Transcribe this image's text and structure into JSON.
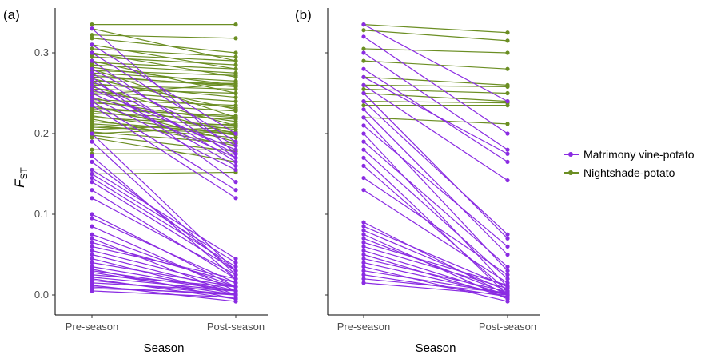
{
  "colors": {
    "Matrimony vine-potato": "#8a2be2",
    "Nightshade-potato": "#6b8e23"
  },
  "ylabel_main": "F",
  "ylabel_sub": "ST",
  "legend": [
    {
      "label": "Matrimony vine-potato",
      "color": "#8a2be2"
    },
    {
      "label": "Nightshade-potato",
      "color": "#6b8e23"
    }
  ],
  "chart_data": [
    {
      "panel": "(a)",
      "type": "line",
      "categories": [
        "Pre-season",
        "Post-season"
      ],
      "xlabel": "Season",
      "ylim": [
        -0.012,
        0.345
      ],
      "yticks": [
        0.0,
        0.1,
        0.2,
        0.3
      ],
      "ytick_labels": [
        "0.0",
        "0.1",
        "0.2",
        "0.3"
      ],
      "series": [
        {
          "name": "Nightshade-potato",
          "pairs": [
            [
              0.335,
              0.335
            ],
            [
              0.33,
              0.29
            ],
            [
              0.322,
              0.318
            ],
            [
              0.318,
              0.3
            ],
            [
              0.31,
              0.28
            ],
            [
              0.305,
              0.295
            ],
            [
              0.3,
              0.27
            ],
            [
              0.298,
              0.29
            ],
            [
              0.295,
              0.285
            ],
            [
              0.29,
              0.25
            ],
            [
              0.288,
              0.28
            ],
            [
              0.285,
              0.275
            ],
            [
              0.282,
              0.26
            ],
            [
              0.28,
              0.22
            ],
            [
              0.278,
              0.272
            ],
            [
              0.275,
              0.265
            ],
            [
              0.272,
              0.258
            ],
            [
              0.27,
              0.26
            ],
            [
              0.268,
              0.23
            ],
            [
              0.265,
              0.262
            ],
            [
              0.262,
              0.245
            ],
            [
              0.26,
              0.255
            ],
            [
              0.258,
              0.21
            ],
            [
              0.255,
              0.25
            ],
            [
              0.252,
              0.24
            ],
            [
              0.25,
              0.232
            ],
            [
              0.248,
              0.262
            ],
            [
              0.245,
              0.2
            ],
            [
              0.242,
              0.235
            ],
            [
              0.24,
              0.215
            ],
            [
              0.238,
              0.228
            ],
            [
              0.235,
              0.19
            ],
            [
              0.232,
              0.22
            ],
            [
              0.23,
              0.222
            ],
            [
              0.228,
              0.205
            ],
            [
              0.225,
              0.218
            ],
            [
              0.222,
              0.198
            ],
            [
              0.22,
              0.21
            ],
            [
              0.218,
              0.185
            ],
            [
              0.215,
              0.2
            ],
            [
              0.212,
              0.202
            ],
            [
              0.21,
              0.195
            ],
            [
              0.208,
              0.2
            ],
            [
              0.205,
              0.212
            ],
            [
              0.202,
              0.188
            ],
            [
              0.2,
              0.208
            ],
            [
              0.198,
              0.178
            ],
            [
              0.195,
              0.165
            ],
            [
              0.18,
              0.18
            ],
            [
              0.175,
              0.175
            ],
            [
              0.155,
              0.155
            ],
            [
              0.15,
              0.152
            ]
          ]
        },
        {
          "name": "Matrimony vine-potato",
          "pairs": [
            [
              0.33,
              0.175
            ],
            [
              0.31,
              0.2
            ],
            [
              0.3,
              0.19
            ],
            [
              0.29,
              0.17
            ],
            [
              0.28,
              0.185
            ],
            [
              0.275,
              0.165
            ],
            [
              0.27,
              0.14
            ],
            [
              0.265,
              0.175
            ],
            [
              0.26,
              0.16
            ],
            [
              0.255,
              0.18
            ],
            [
              0.25,
              0.17
            ],
            [
              0.245,
              0.155
            ],
            [
              0.24,
              0.13
            ],
            [
              0.235,
              0.12
            ],
            [
              0.2,
              0.03
            ],
            [
              0.19,
              0.025
            ],
            [
              0.172,
              0.02
            ],
            [
              0.165,
              0.03
            ],
            [
              0.155,
              0.045
            ],
            [
              0.15,
              0.04
            ],
            [
              0.145,
              0.035
            ],
            [
              0.14,
              0.03
            ],
            [
              0.13,
              0.02
            ],
            [
              0.12,
              0.025
            ],
            [
              0.1,
              0.01
            ],
            [
              0.095,
              0.015
            ],
            [
              0.085,
              0.005
            ],
            [
              0.075,
              0.01
            ],
            [
              0.07,
              0.0
            ],
            [
              0.065,
              0.015
            ],
            [
              0.06,
              0.02
            ],
            [
              0.055,
              0.01
            ],
            [
              0.05,
              0.005
            ],
            [
              0.045,
              0.0
            ],
            [
              0.04,
              0.01
            ],
            [
              0.035,
              0.005
            ],
            [
              0.032,
              -0.005
            ],
            [
              0.03,
              0.005
            ],
            [
              0.028,
              0.0
            ],
            [
              0.025,
              0.01
            ],
            [
              0.022,
              0.005
            ],
            [
              0.02,
              -0.005
            ],
            [
              0.018,
              0.0
            ],
            [
              0.015,
              0.005
            ],
            [
              0.012,
              -0.008
            ],
            [
              0.01,
              0.0
            ],
            [
              0.008,
              0.002
            ],
            [
              0.005,
              -0.003
            ]
          ]
        }
      ]
    },
    {
      "panel": "(b)",
      "type": "line",
      "categories": [
        "Pre-season",
        "Post-season"
      ],
      "xlabel": "Season",
      "ylim": [
        -0.012,
        0.345
      ],
      "series": [
        {
          "name": "Nightshade-potato",
          "pairs": [
            [
              0.335,
              0.325
            ],
            [
              0.328,
              0.315
            ],
            [
              0.305,
              0.3
            ],
            [
              0.29,
              0.28
            ],
            [
              0.27,
              0.26
            ],
            [
              0.26,
              0.258
            ],
            [
              0.255,
              0.25
            ],
            [
              0.25,
              0.24
            ],
            [
              0.24,
              0.238
            ],
            [
              0.235,
              0.235
            ],
            [
              0.22,
              0.212
            ]
          ]
        },
        {
          "name": "Matrimony vine-potato",
          "pairs": [
            [
              0.335,
              0.24
            ],
            [
              0.32,
              0.2
            ],
            [
              0.3,
              0.18
            ],
            [
              0.28,
              0.165
            ],
            [
              0.27,
              0.175
            ],
            [
              0.26,
              0.142
            ],
            [
              0.25,
              0.07
            ],
            [
              0.24,
              0.075
            ],
            [
              0.23,
              0.05
            ],
            [
              0.22,
              0.03
            ],
            [
              0.21,
              0.06
            ],
            [
              0.2,
              0.01
            ],
            [
              0.19,
              0.035
            ],
            [
              0.18,
              0.02
            ],
            [
              0.17,
              0.0
            ],
            [
              0.16,
              0.005
            ],
            [
              0.145,
              0.025
            ],
            [
              0.13,
              0.015
            ],
            [
              0.09,
              0.0
            ],
            [
              0.085,
              0.01
            ],
            [
              0.08,
              0.005
            ],
            [
              0.075,
              -0.005
            ],
            [
              0.07,
              0.002
            ],
            [
              0.065,
              0.012
            ],
            [
              0.06,
              0.008
            ],
            [
              0.055,
              0.0
            ],
            [
              0.05,
              -0.003
            ],
            [
              0.045,
              0.004
            ],
            [
              0.04,
              0.0
            ],
            [
              0.035,
              -0.008
            ],
            [
              0.03,
              0.002
            ],
            [
              0.025,
              -0.002
            ],
            [
              0.02,
              0.003
            ],
            [
              0.015,
              0.0
            ]
          ]
        }
      ]
    }
  ]
}
